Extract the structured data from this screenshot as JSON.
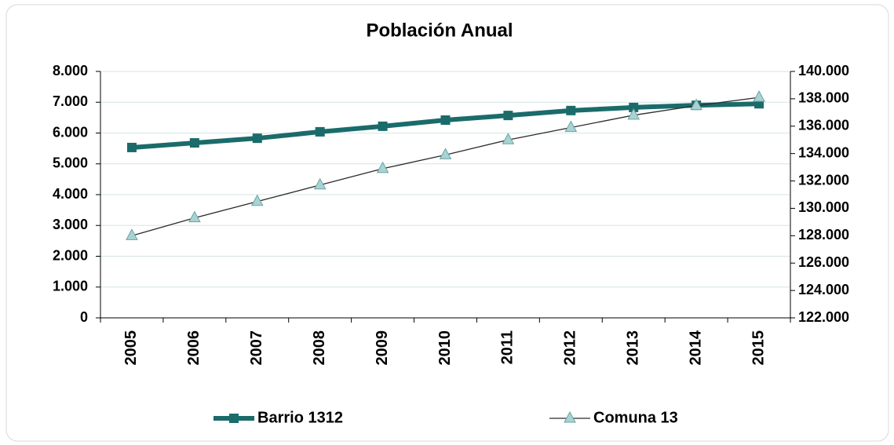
{
  "chart_data": {
    "type": "line",
    "title": "Población Anual",
    "categories": [
      "2005",
      "2006",
      "2007",
      "2008",
      "2009",
      "2010",
      "2011",
      "2012",
      "2013",
      "2014",
      "2015"
    ],
    "series": [
      {
        "name": "Barrio 1312",
        "color": "#1b6b6b",
        "axis": "y",
        "values": [
          5530,
          5680,
          5830,
          6040,
          6220,
          6420,
          6570,
          6730,
          6830,
          6900,
          6950
        ]
      },
      {
        "name": "Comuna 13",
        "color": "#2b2b2b",
        "marker_color": "#a9d3d3",
        "axis": "y2",
        "values": [
          128000,
          129300,
          130500,
          131700,
          132900,
          133900,
          135000,
          135900,
          136800,
          137500,
          138100
        ]
      }
    ],
    "ylim": [
      0,
      8000
    ],
    "yticks": [
      0,
      {
        "value": 1000,
        "label": "1.000"
      },
      {
        "value": 2000,
        "label": "2.000"
      },
      {
        "value": 3000,
        "label": "3.000"
      },
      {
        "value": 4000,
        "label": "4.000"
      },
      {
        "value": 5000,
        "label": "5.000"
      },
      {
        "value": 6000,
        "label": "6.000"
      },
      {
        "value": 7000,
        "label": "7.000"
      },
      {
        "value": 8000,
        "label": "8.000"
      }
    ],
    "y2lim": [
      122000,
      140000
    ],
    "y2ticks": [
      {
        "value": 122000,
        "label": "122.000"
      },
      {
        "value": 124000,
        "label": "124.000"
      },
      {
        "value": 126000,
        "label": "126.000"
      },
      {
        "value": 128000,
        "label": "128.000"
      },
      {
        "value": 130000,
        "label": "130.000"
      },
      {
        "value": 132000,
        "label": "132.000"
      },
      {
        "value": 134000,
        "label": "134.000"
      },
      {
        "value": 136000,
        "label": "136.000"
      },
      {
        "value": 138000,
        "label": "138.000"
      },
      {
        "value": 140000,
        "label": "140.000"
      }
    ],
    "grid": true,
    "legend": "bottom"
  }
}
